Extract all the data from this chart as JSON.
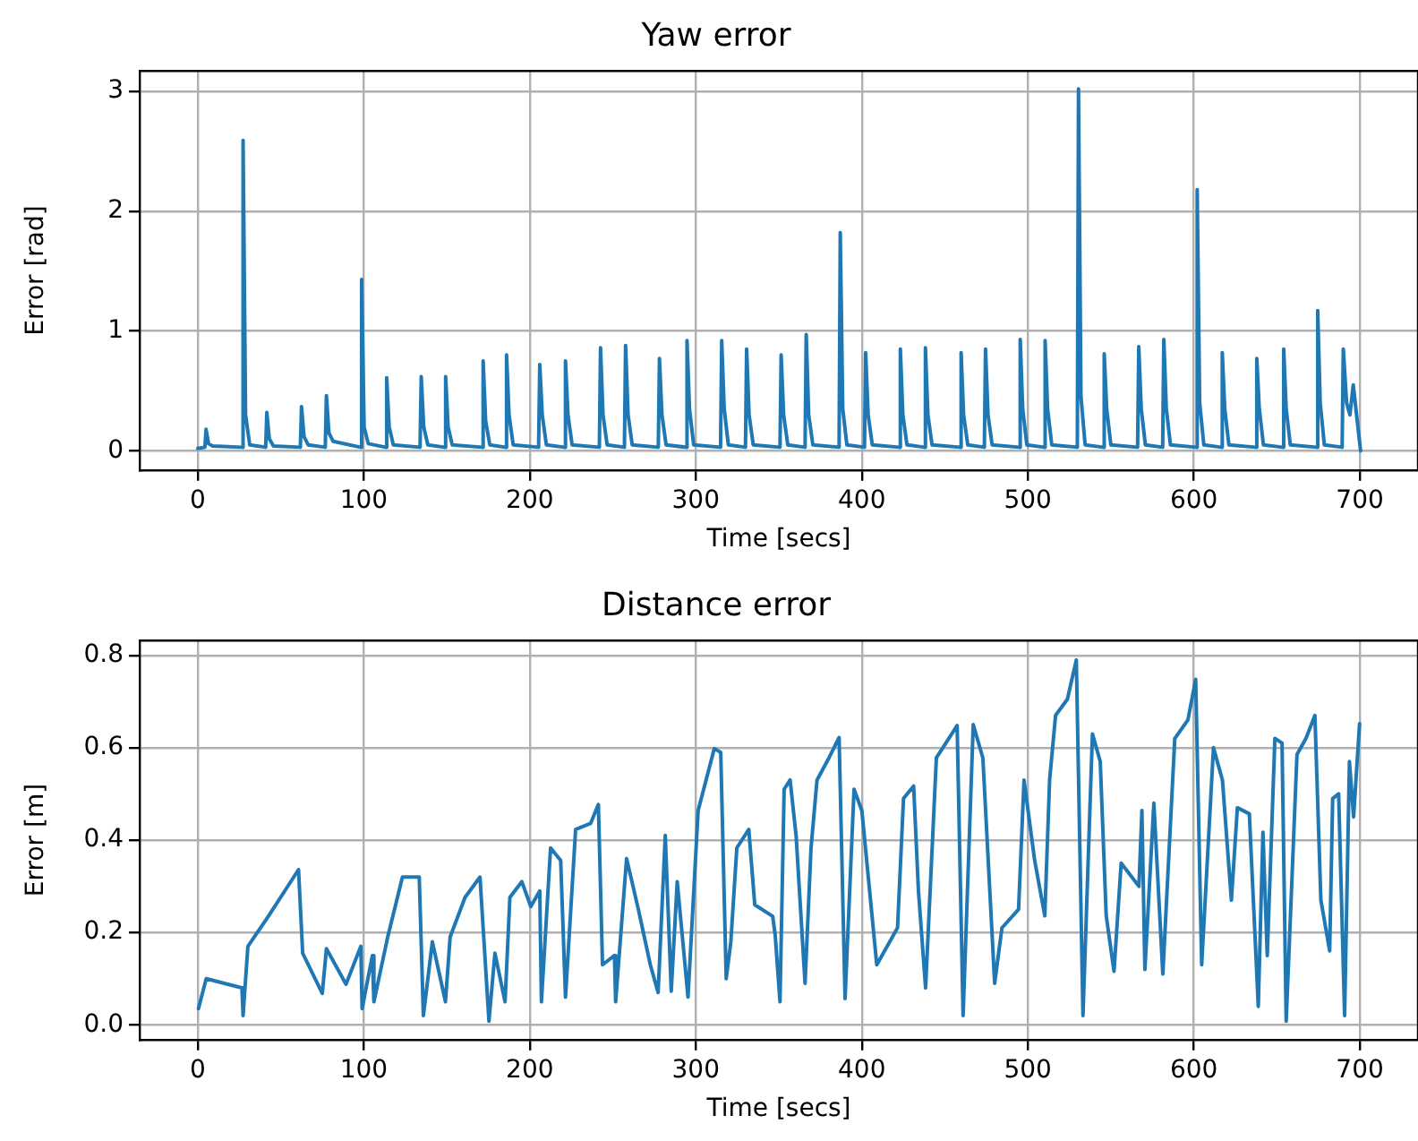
{
  "chart_data": [
    {
      "type": "line",
      "title": "Yaw error",
      "xlabel": "Time [secs]",
      "ylabel": "Error [rad]",
      "xlim": [
        -35,
        735
      ],
      "xticks": [
        0,
        100,
        200,
        300,
        400,
        500,
        600,
        700
      ],
      "ylim": [
        -0.16,
        3.17
      ],
      "yticks": [
        0,
        1,
        2,
        3
      ],
      "grid": true,
      "legend": false,
      "marker": "none",
      "line_style": "solid",
      "series": [
        {
          "color": "#1f77b4",
          "x": [
            0,
            4.3,
            5,
            6.5,
            9,
            26.6,
            27.3,
            28.8,
            31.3,
            40.9,
            41.6,
            43.1,
            45.6,
            61.8,
            62.5,
            64,
            66.5,
            76.8,
            77.5,
            79,
            81.5,
            98,
            98.7,
            100.2,
            102.7,
            113.1,
            113.8,
            115.3,
            117.8,
            133.9,
            134.6,
            136.1,
            138.6,
            148.6,
            149.3,
            150.8,
            153.3,
            171.2,
            171.9,
            173.4,
            175.9,
            185.3,
            186,
            187.5,
            190,
            205.3,
            206,
            207.5,
            210,
            220.8,
            221.5,
            223,
            225.5,
            241.9,
            242.6,
            244.1,
            246.6,
            257,
            257.7,
            259.2,
            261.7,
            277.4,
            278.1,
            279.6,
            282.1,
            294,
            294.7,
            296.2,
            298.7,
            314.9,
            315.6,
            317.1,
            319.6,
            329.9,
            330.6,
            332.1,
            334.6,
            350.7,
            351.4,
            352.9,
            355.4,
            365.8,
            366.5,
            368,
            370.5,
            386.3,
            387,
            388.5,
            391,
            401.6,
            402.3,
            403.8,
            406.3,
            422.5,
            423.2,
            424.7,
            427.2,
            437.6,
            438.3,
            439.8,
            442.3,
            459.1,
            459.8,
            461.3,
            463.8,
            473.8,
            474.5,
            476,
            478.5,
            494.7,
            495.4,
            496.9,
            499.4,
            509.7,
            510.4,
            511.9,
            514.4,
            529.8,
            530.5,
            532,
            534.5,
            545.3,
            546,
            547.5,
            550,
            566.1,
            566.8,
            568.3,
            570.8,
            581.2,
            581.9,
            583.4,
            585.9,
            601.3,
            602,
            603.5,
            606,
            616.4,
            617.1,
            618.6,
            621.1,
            637.2,
            637.9,
            639.4,
            641.9,
            653.4,
            654.1,
            655.6,
            658.1,
            673.9,
            674.6,
            676.1,
            678.6,
            689.3,
            690,
            692,
            694,
            696,
            698,
            700.4
          ],
          "values": [
            0.02,
            0.03,
            0.18,
            0.06,
            0.04,
            0.03,
            2.59,
            0.3,
            0.05,
            0.03,
            0.32,
            0.1,
            0.04,
            0.03,
            0.37,
            0.12,
            0.05,
            0.03,
            0.46,
            0.15,
            0.08,
            0.03,
            1.43,
            0.2,
            0.06,
            0.03,
            0.61,
            0.2,
            0.05,
            0.03,
            0.62,
            0.2,
            0.05,
            0.03,
            0.62,
            0.2,
            0.05,
            0.03,
            0.75,
            0.25,
            0.05,
            0.03,
            0.8,
            0.3,
            0.05,
            0.03,
            0.72,
            0.3,
            0.05,
            0.03,
            0.75,
            0.3,
            0.05,
            0.03,
            0.86,
            0.3,
            0.05,
            0.03,
            0.88,
            0.3,
            0.05,
            0.03,
            0.77,
            0.3,
            0.05,
            0.03,
            0.92,
            0.35,
            0.05,
            0.03,
            0.92,
            0.35,
            0.05,
            0.03,
            0.85,
            0.3,
            0.05,
            0.03,
            0.8,
            0.3,
            0.05,
            0.03,
            0.97,
            0.3,
            0.05,
            0.03,
            1.82,
            0.35,
            0.05,
            0.03,
            0.82,
            0.3,
            0.05,
            0.03,
            0.85,
            0.3,
            0.05,
            0.03,
            0.86,
            0.3,
            0.05,
            0.03,
            0.82,
            0.3,
            0.05,
            0.03,
            0.85,
            0.3,
            0.05,
            0.03,
            0.93,
            0.35,
            0.05,
            0.03,
            0.92,
            0.35,
            0.05,
            0.03,
            3.02,
            0.45,
            0.05,
            0.03,
            0.81,
            0.35,
            0.05,
            0.03,
            0.87,
            0.35,
            0.05,
            0.03,
            0.93,
            0.35,
            0.05,
            0.03,
            2.18,
            0.4,
            0.05,
            0.03,
            0.82,
            0.35,
            0.05,
            0.03,
            0.77,
            0.35,
            0.05,
            0.03,
            0.85,
            0.35,
            0.05,
            0.03,
            1.17,
            0.4,
            0.05,
            0.03,
            0.85,
            0.4,
            0.3,
            0.55,
            0.3,
            0
          ]
        }
      ]
    },
    {
      "type": "line",
      "title": "Distance error",
      "xlabel": "Time [secs]",
      "ylabel": "Error [m]",
      "xlim": [
        -35,
        735
      ],
      "xticks": [
        0,
        100,
        200,
        300,
        400,
        500,
        600,
        700
      ],
      "ylim": [
        -0.032,
        0.832
      ],
      "yticks": [
        {
          "value": 0,
          "label": "0.0"
        },
        {
          "value": 0.2,
          "label": "0.2"
        },
        {
          "value": 0.4,
          "label": "0.4"
        },
        {
          "value": 0.6,
          "label": "0.6"
        },
        {
          "value": 0.8,
          "label": "0.8"
        }
      ],
      "grid": true,
      "legend": false,
      "marker": "none",
      "line_style": "solid",
      "series": [
        {
          "color": "#1f77b4",
          "x": [
            0.4,
            5.1,
            26.6,
            27.3,
            30.2,
            42.7,
            60.7,
            63.2,
            75,
            77.5,
            89.3,
            98.2,
            99,
            105.2,
            106.1,
            114.4,
            123.3,
            133.4,
            135.9,
            141.3,
            149.2,
            152,
            161,
            170,
            175.4,
            179,
            185.1,
            188,
            195.2,
            200.6,
            206,
            207,
            212.5,
            218.6,
            221.5,
            227.6,
            236.6,
            241.3,
            243.8,
            251,
            251.7,
            258.3,
            265.4,
            272.6,
            277.3,
            281.6,
            285.2,
            288.8,
            295.3,
            301.4,
            311.1,
            315,
            318.3,
            321.1,
            324.7,
            331.9,
            335.5,
            346.3,
            347.8,
            350.7,
            353.2,
            356.8,
            360.4,
            365.8,
            369.4,
            373,
            380.2,
            386.3,
            389.9,
            395.3,
            400,
            409,
            421.5,
            425.1,
            431.2,
            434.1,
            438.4,
            444.9,
            457.4,
            461,
            467.1,
            472.9,
            480,
            484.4,
            494.4,
            497.7,
            504.1,
            510.2,
            513.1,
            516.7,
            523.8,
            529.2,
            533.2,
            538.9,
            543.6,
            547.2,
            551.9,
            556.2,
            566.9,
            568.7,
            570.5,
            575.9,
            581.3,
            588.5,
            596.4,
            601.1,
            604.7,
            611.8,
            617.2,
            622.6,
            626.2,
            633.4,
            638.8,
            641.6,
            644.2,
            648.8,
            653.1,
            655.6,
            662.1,
            667.5,
            672.9,
            676.5,
            681.8,
            683.6,
            687.2,
            690.8,
            693.7,
            696.2,
            699.8
          ],
          "values": [
            0.035,
            0.1,
            0.08,
            0.02,
            0.17,
            0.236,
            0.336,
            0.155,
            0.068,
            0.165,
            0.088,
            0.17,
            0.035,
            0.15,
            0.05,
            0.19,
            0.32,
            0.32,
            0.02,
            0.18,
            0.05,
            0.19,
            0.276,
            0.32,
            0.008,
            0.155,
            0.05,
            0.276,
            0.31,
            0.256,
            0.29,
            0.05,
            0.383,
            0.356,
            0.06,
            0.423,
            0.436,
            0.477,
            0.13,
            0.15,
            0.05,
            0.36,
            0.25,
            0.13,
            0.07,
            0.41,
            0.073,
            0.31,
            0.06,
            0.464,
            0.598,
            0.59,
            0.1,
            0.18,
            0.383,
            0.423,
            0.26,
            0.235,
            0.195,
            0.05,
            0.51,
            0.53,
            0.41,
            0.09,
            0.383,
            0.53,
            0.578,
            0.622,
            0.057,
            0.51,
            0.464,
            0.13,
            0.21,
            0.49,
            0.517,
            0.29,
            0.08,
            0.578,
            0.648,
            0.02,
            0.65,
            0.578,
            0.09,
            0.21,
            0.25,
            0.53,
            0.356,
            0.236,
            0.53,
            0.67,
            0.705,
            0.79,
            0.02,
            0.63,
            0.57,
            0.236,
            0.116,
            0.35,
            0.3,
            0.464,
            0.12,
            0.48,
            0.11,
            0.62,
            0.66,
            0.748,
            0.13,
            0.6,
            0.53,
            0.27,
            0.47,
            0.457,
            0.04,
            0.417,
            0.15,
            0.62,
            0.61,
            0.008,
            0.585,
            0.62,
            0.67,
            0.27,
            0.16,
            0.49,
            0.5,
            0.02,
            0.57,
            0.45,
            0.652
          ]
        }
      ]
    }
  ]
}
